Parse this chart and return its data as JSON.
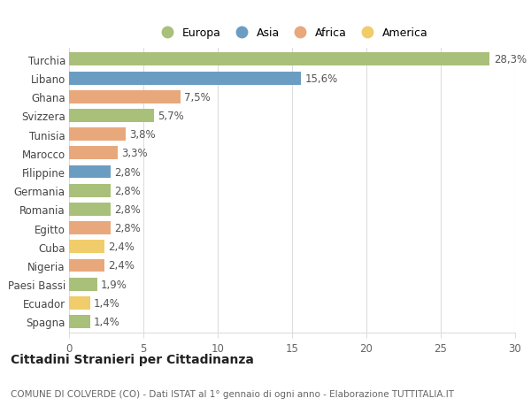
{
  "countries": [
    "Turchia",
    "Libano",
    "Ghana",
    "Svizzera",
    "Tunisia",
    "Marocco",
    "Filippine",
    "Germania",
    "Romania",
    "Egitto",
    "Cuba",
    "Nigeria",
    "Paesi Bassi",
    "Ecuador",
    "Spagna"
  ],
  "values": [
    28.3,
    15.6,
    7.5,
    5.7,
    3.8,
    3.3,
    2.8,
    2.8,
    2.8,
    2.8,
    2.4,
    2.4,
    1.9,
    1.4,
    1.4
  ],
  "labels": [
    "28,3%",
    "15,6%",
    "7,5%",
    "5,7%",
    "3,8%",
    "3,3%",
    "2,8%",
    "2,8%",
    "2,8%",
    "2,8%",
    "2,4%",
    "2,4%",
    "1,9%",
    "1,4%",
    "1,4%"
  ],
  "continents": [
    "Europa",
    "Asia",
    "Africa",
    "Europa",
    "Africa",
    "Africa",
    "Asia",
    "Europa",
    "Europa",
    "Africa",
    "America",
    "Africa",
    "Europa",
    "America",
    "Europa"
  ],
  "continent_colors": {
    "Europa": "#a8c07a",
    "Asia": "#6b9dc2",
    "Africa": "#e8a87c",
    "America": "#f0cc6b"
  },
  "legend_order": [
    "Europa",
    "Asia",
    "Africa",
    "America"
  ],
  "title": "Cittadini Stranieri per Cittadinanza",
  "subtitle": "COMUNE DI COLVERDE (CO) - Dati ISTAT al 1° gennaio di ogni anno - Elaborazione TUTTITALIA.IT",
  "xlim": [
    0,
    30
  ],
  "xticks": [
    0,
    5,
    10,
    15,
    20,
    25,
    30
  ],
  "background_color": "#ffffff",
  "bar_height": 0.7,
  "grid_color": "#dddddd",
  "label_fontsize": 8.5,
  "tick_fontsize": 8.5,
  "title_fontsize": 10,
  "subtitle_fontsize": 7.5
}
